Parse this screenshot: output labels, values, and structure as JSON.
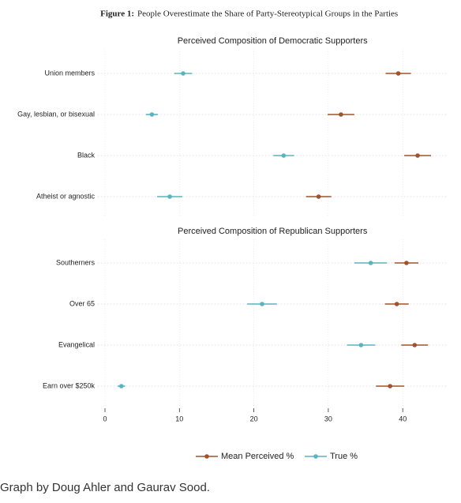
{
  "figure_title_label": "Figure 1:",
  "figure_title": "People Overestimate the Share of Party-Stereotypical Groups in the Parties",
  "caption": "Graph by Doug Ahler and Gaurav Sood.",
  "chart_data": {
    "type": "dotplot",
    "xlim": [
      -1,
      46
    ],
    "xticks": [
      0,
      10,
      20,
      30,
      40
    ],
    "grid": true,
    "legend": "bottom",
    "series": [
      {
        "name": "Mean Perceived %",
        "color": "#a0522d"
      },
      {
        "name": "True %",
        "color": "#5ab4c0"
      }
    ],
    "panels": [
      {
        "title": "Perceived Composition of Democratic Supporters",
        "categories": [
          "Union members",
          "Gay, lesbian, or bisexual",
          "Black",
          "Atheist or agnostic"
        ],
        "series": [
          {
            "values": [
              39.4,
              31.7,
              42.0,
              28.7
            ],
            "errors": [
              1.7,
              1.8,
              1.8,
              1.7
            ]
          },
          {
            "values": [
              10.5,
              6.3,
              24.0,
              8.7
            ],
            "errors": [
              1.2,
              0.8,
              1.4,
              1.7
            ]
          }
        ]
      },
      {
        "title": "Perceived Composition of Republican Supporters",
        "categories": [
          "Southerners",
          "Over 65",
          "Evangelical",
          "Earn over $250k"
        ],
        "series": [
          {
            "values": [
              40.5,
              39.2,
              41.6,
              38.3
            ],
            "errors": [
              1.6,
              1.6,
              1.8,
              1.9
            ]
          },
          {
            "values": [
              35.7,
              21.1,
              34.4,
              2.2
            ],
            "errors": [
              2.2,
              2.0,
              1.9,
              0.5
            ]
          }
        ]
      }
    ]
  }
}
